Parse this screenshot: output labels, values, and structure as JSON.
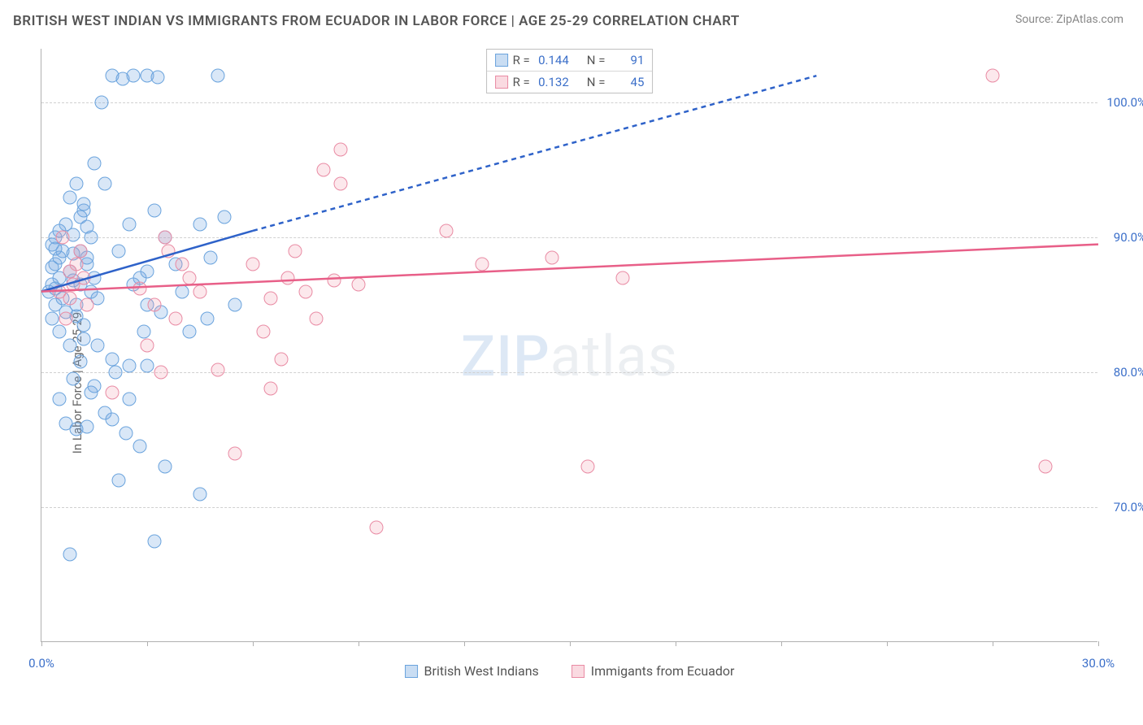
{
  "title": "BRITISH WEST INDIAN VS IMMIGRANTS FROM ECUADOR IN LABOR FORCE | AGE 25-29 CORRELATION CHART",
  "source": "Source: ZipAtlas.com",
  "ylabel": "In Labor Force | Age 25-29",
  "watermark_a": "ZIP",
  "watermark_b": "atlas",
  "chart": {
    "type": "scatter",
    "xlim": [
      0,
      30
    ],
    "ylim": [
      60,
      104
    ],
    "xticks": [
      0,
      3,
      6,
      9,
      12,
      15,
      18,
      21,
      24,
      27,
      30
    ],
    "xtick_labels": {
      "0": "0.0%",
      "30": "30.0%"
    },
    "yticks": [
      70,
      80,
      90,
      100
    ],
    "ytick_labels": {
      "70": "70.0%",
      "80": "80.0%",
      "90": "90.0%",
      "100": "100.0%"
    },
    "grid_color": "#d0d0d0",
    "axis_color": "#b0b0b0",
    "background_color": "#ffffff",
    "marker_radius": 8.5,
    "series": [
      {
        "name": "British West Indians",
        "key": "blue",
        "fill": "rgba(120,170,225,0.28)",
        "stroke": "#6aa3dd",
        "R": "0.144",
        "N": "91",
        "trend": {
          "solid": [
            [
              0,
              86
            ],
            [
              6,
              90.5
            ]
          ],
          "dashed": [
            [
              6,
              90.5
            ],
            [
              22,
              102
            ]
          ],
          "color": "#2e62c9",
          "width": 2.5
        },
        "points": [
          [
            0.2,
            86
          ],
          [
            0.3,
            86.5
          ],
          [
            0.4,
            85
          ],
          [
            0.5,
            87
          ],
          [
            0.4,
            88
          ],
          [
            0.6,
            89
          ],
          [
            0.3,
            84
          ],
          [
            0.5,
            83
          ],
          [
            0.4,
            90
          ],
          [
            0.7,
            91
          ],
          [
            0.3,
            89.5
          ],
          [
            0.5,
            88.5
          ],
          [
            0.8,
            87.5
          ],
          [
            0.4,
            86.2
          ],
          [
            0.6,
            85.5
          ],
          [
            0.5,
            90.5
          ],
          [
            0.3,
            87.8
          ],
          [
            0.7,
            84.5
          ],
          [
            0.9,
            86.8
          ],
          [
            0.4,
            89.2
          ],
          [
            1.0,
            94
          ],
          [
            1.2,
            92
          ],
          [
            0.8,
            93
          ],
          [
            1.1,
            91.5
          ],
          [
            0.9,
            90.2
          ],
          [
            1.3,
            88
          ],
          [
            1.0,
            85
          ],
          [
            1.2,
            83.5
          ],
          [
            0.8,
            82
          ],
          [
            1.4,
            86
          ],
          [
            1.1,
            89
          ],
          [
            1.3,
            90.8
          ],
          [
            1.5,
            87
          ],
          [
            0.9,
            88.8
          ],
          [
            1.6,
            85.5
          ],
          [
            1.2,
            92.5
          ],
          [
            1.0,
            84.2
          ],
          [
            1.4,
            90
          ],
          [
            1.1,
            86.5
          ],
          [
            1.3,
            88.5
          ],
          [
            1.7,
            100
          ],
          [
            2.0,
            102
          ],
          [
            2.3,
            101.8
          ],
          [
            2.6,
            102
          ],
          [
            3.0,
            102
          ],
          [
            3.3,
            101.9
          ],
          [
            5.0,
            102
          ],
          [
            1.5,
            95.5
          ],
          [
            1.8,
            94
          ],
          [
            2.5,
            91
          ],
          [
            2.2,
            89
          ],
          [
            2.8,
            87
          ],
          [
            3.2,
            92
          ],
          [
            3.0,
            85
          ],
          [
            2.6,
            86.5
          ],
          [
            3.5,
            90
          ],
          [
            3.8,
            88
          ],
          [
            2.9,
            83
          ],
          [
            3.4,
            84.5
          ],
          [
            4.0,
            86
          ],
          [
            4.5,
            91
          ],
          [
            4.8,
            88.5
          ],
          [
            5.2,
            91.5
          ],
          [
            5.5,
            85
          ],
          [
            4.2,
            83
          ],
          [
            4.7,
            84
          ],
          [
            2.1,
            80
          ],
          [
            3.0,
            80.5
          ],
          [
            1.5,
            79
          ],
          [
            2.5,
            78
          ],
          [
            1.8,
            77
          ],
          [
            2.0,
            76.5
          ],
          [
            1.3,
            76
          ],
          [
            2.4,
            75.5
          ],
          [
            1.0,
            75.8
          ],
          [
            0.7,
            76.2
          ],
          [
            0.5,
            78
          ],
          [
            0.9,
            79.5
          ],
          [
            1.4,
            78.5
          ],
          [
            1.1,
            80.8
          ],
          [
            2.8,
            74.5
          ],
          [
            3.5,
            73
          ],
          [
            2.2,
            72
          ],
          [
            4.5,
            71
          ],
          [
            3.2,
            67.5
          ],
          [
            0.8,
            66.5
          ],
          [
            1.2,
            82.5
          ],
          [
            1.6,
            82
          ],
          [
            2.0,
            81
          ],
          [
            2.5,
            80.5
          ],
          [
            3.0,
            87.5
          ]
        ]
      },
      {
        "name": "Immigants from Ecuador",
        "key": "pink",
        "fill": "rgba(240,150,170,0.22)",
        "stroke": "#e98ba4",
        "R": "0.132",
        "N": "45",
        "trend": {
          "solid": [
            [
              0,
              86
            ],
            [
              30,
              89.5
            ]
          ],
          "dashed": null,
          "color": "#e85f88",
          "width": 2.5
        },
        "points": [
          [
            0.5,
            86
          ],
          [
            0.8,
            85.5
          ],
          [
            0.6,
            90
          ],
          [
            1.0,
            88
          ],
          [
            0.7,
            84
          ],
          [
            1.2,
            87
          ],
          [
            0.9,
            86.5
          ],
          [
            1.1,
            89
          ],
          [
            0.8,
            87.5
          ],
          [
            1.3,
            85
          ],
          [
            3.5,
            90
          ],
          [
            3.2,
            85
          ],
          [
            4.0,
            88
          ],
          [
            3.8,
            84
          ],
          [
            4.5,
            86
          ],
          [
            3.0,
            82
          ],
          [
            3.4,
            80
          ],
          [
            4.2,
            87
          ],
          [
            2.8,
            86.2
          ],
          [
            3.6,
            89
          ],
          [
            6.0,
            88
          ],
          [
            6.5,
            85.5
          ],
          [
            7.0,
            87
          ],
          [
            6.3,
            83
          ],
          [
            7.2,
            89
          ],
          [
            6.8,
            81
          ],
          [
            7.5,
            86
          ],
          [
            8.0,
            95
          ],
          [
            8.5,
            94
          ],
          [
            9.0,
            86.5
          ],
          [
            7.8,
            84
          ],
          [
            8.3,
            86.8
          ],
          [
            11.5,
            90.5
          ],
          [
            12.5,
            88
          ],
          [
            14.5,
            88.5
          ],
          [
            16.5,
            87
          ],
          [
            15.5,
            73
          ],
          [
            27.0,
            102
          ],
          [
            28.5,
            73
          ],
          [
            9.5,
            68.5
          ],
          [
            5.5,
            74
          ],
          [
            2.0,
            78.5
          ],
          [
            5.0,
            80.2
          ],
          [
            6.5,
            78.8
          ],
          [
            8.5,
            96.5
          ]
        ]
      }
    ],
    "legend_stats_labels": {
      "R": "R =",
      "N": "N ="
    },
    "bottom_legend": [
      {
        "swatch": "blue",
        "label": "British West Indians"
      },
      {
        "swatch": "pink",
        "label": "Immigants from Ecuador"
      }
    ]
  }
}
